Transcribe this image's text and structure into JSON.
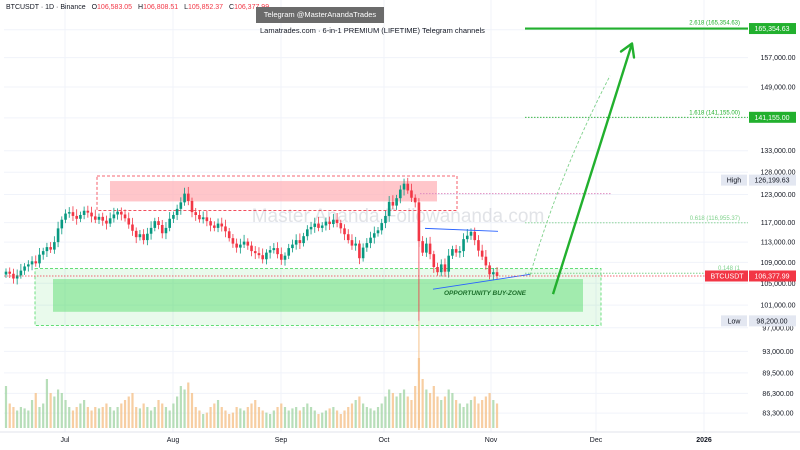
{
  "header": {
    "symbol": "BTCUSDT · 1D · Binance",
    "ohlc": [
      {
        "label": "O",
        "value": "106,583.05"
      },
      {
        "label": "H",
        "value": "106,808.51"
      },
      {
        "label": "L",
        "value": "105,852.37"
      },
      {
        "label": "C",
        "value": "106,377.99"
      }
    ]
  },
  "banner": {
    "title": "Telegram @MasterAnandaTrades",
    "subtitle": "Lamatrades.com · 6-in-1 PREMIUM (LIFETIME) Telegram channels"
  },
  "watermark": "Master Ananda  Followananda.com",
  "colors": {
    "up": "#089981",
    "down": "#f23645",
    "volume_up": "#a5d6a7",
    "volume_down": "#f5c28b",
    "zone": "#4cd964",
    "resistance": "#ffb3b8",
    "target": "#22b02e",
    "trendline": "#2962ff"
  },
  "chart_data": {
    "type": "candlestick",
    "x_ticks": [
      "Jul",
      "Aug",
      "Sep",
      "Oct",
      "Nov",
      "Dec",
      "2026"
    ],
    "y_ticks": [
      83300,
      86300,
      89500,
      93000,
      97000,
      101000,
      105000,
      109000,
      113000,
      117000,
      123000,
      128000,
      133000,
      141000,
      149000,
      157000,
      165000
    ],
    "y_tick_labels": [
      "83,300.00",
      "86,300.00",
      "89,500.00",
      "93,000.00",
      "97,000.00",
      "101,000.00",
      "105,000.00",
      "109,000.00",
      "113,000.00",
      "117,000.00",
      "123,000.00",
      "128,000.00",
      "133,000.00",
      "141,000.00",
      "149,000.00",
      "157,000.00",
      "165,000.00"
    ],
    "ylim": [
      82000,
      170000
    ],
    "log_scale": true,
    "closes": [
      107200,
      106800,
      105900,
      106500,
      107400,
      108200,
      108600,
      109200,
      108800,
      110500,
      111200,
      112000,
      111500,
      113000,
      115800,
      117600,
      118900,
      119200,
      118400,
      117800,
      118600,
      119500,
      119100,
      118300,
      117600,
      118200,
      117400,
      116800,
      117900,
      118700,
      119300,
      118700,
      117900,
      116600,
      115300,
      114000,
      114600,
      113400,
      114700,
      115900,
      117300,
      116500,
      114800,
      115900,
      117800,
      118600,
      119900,
      121300,
      123200,
      121600,
      119200,
      118600,
      117700,
      118100,
      117300,
      116400,
      115900,
      116800,
      116200,
      115200,
      113800,
      112700,
      111900,
      112500,
      113100,
      112300,
      111200,
      110800,
      110400,
      109600,
      110900,
      111400,
      111800,
      110600,
      109500,
      110300,
      111800,
      112500,
      113400,
      112800,
      114200,
      115600,
      116100,
      116800,
      115900,
      116400,
      117200,
      116700,
      117600,
      116900,
      115800,
      114600,
      113400,
      112300,
      112700,
      109800,
      111900,
      112800,
      113900,
      114800,
      115400,
      116900,
      118400,
      121400,
      120600,
      122200,
      124100,
      125400,
      123900,
      122300,
      121300,
      113200,
      110900,
      112700,
      110600,
      108100,
      107100,
      108600,
      107200,
      110300,
      111600,
      110900,
      111200,
      113600,
      114300,
      115100,
      113400,
      111300,
      110100,
      108400,
      106700,
      107100,
      106377.99
    ],
    "volume": [
      0.6,
      0.35,
      0.3,
      0.25,
      0.3,
      0.28,
      0.25,
      0.4,
      0.5,
      0.3,
      0.35,
      0.7,
      0.5,
      0.45,
      0.55,
      0.5,
      0.4,
      0.3,
      0.25,
      0.3,
      0.35,
      0.4,
      0.3,
      0.25,
      0.3,
      0.28,
      0.3,
      0.35,
      0.3,
      0.25,
      0.3,
      0.35,
      0.4,
      0.45,
      0.5,
      0.3,
      0.28,
      0.35,
      0.3,
      0.25,
      0.3,
      0.4,
      0.35,
      0.3,
      0.25,
      0.35,
      0.45,
      0.6,
      0.55,
      0.65,
      0.5,
      0.3,
      0.25,
      0.2,
      0.22,
      0.3,
      0.35,
      0.4,
      0.3,
      0.25,
      0.2,
      0.22,
      0.3,
      0.28,
      0.25,
      0.3,
      0.35,
      0.4,
      0.3,
      0.25,
      0.22,
      0.2,
      0.25,
      0.3,
      0.35,
      0.3,
      0.25,
      0.28,
      0.3,
      0.25,
      0.3,
      0.35,
      0.3,
      0.25,
      0.2,
      0.22,
      0.25,
      0.28,
      0.3,
      0.25,
      0.2,
      0.25,
      0.3,
      0.35,
      0.4,
      0.45,
      0.35,
      0.3,
      0.28,
      0.25,
      0.3,
      0.35,
      0.45,
      0.55,
      0.5,
      0.45,
      0.5,
      0.55,
      0.45,
      0.4,
      0.6,
      1.0,
      0.7,
      0.55,
      0.5,
      0.6,
      0.45,
      0.4,
      0.45,
      0.55,
      0.5,
      0.4,
      0.35,
      0.3,
      0.35,
      0.4,
      0.45,
      0.35,
      0.4,
      0.45,
      0.5,
      0.4,
      0.35
    ],
    "levels": {
      "fib_2618": {
        "label": "2.618 (165,354.63)",
        "price": 165354.63,
        "axis_label": "165,354.63"
      },
      "fib_1618": {
        "label": "1.618 (141,155.00)",
        "price": 141155.0,
        "axis_label": "141,155.00"
      },
      "fib_0618": {
        "label": "0.618 (116,955.37)",
        "price": 116955.37
      },
      "fib_0148": {
        "label": "0.148 (1",
        "price": 106900
      },
      "high": {
        "label": "High",
        "price": 126199.63,
        "value": "126,199.63"
      },
      "low": {
        "label": "Low",
        "price": 98200.0,
        "value": "98,200.00"
      },
      "last": {
        "label": "BTCUSDT",
        "price": 106377.99,
        "value": "106,377.99"
      }
    },
    "resistance_zone": [
      121500,
      126000
    ],
    "buy_zone": [
      99800,
      105800
    ],
    "buy_zone_outer": [
      97400,
      107800
    ],
    "annotations": {
      "buy_zone_label": "OPPORTUNITY BUY-ZONE"
    }
  }
}
